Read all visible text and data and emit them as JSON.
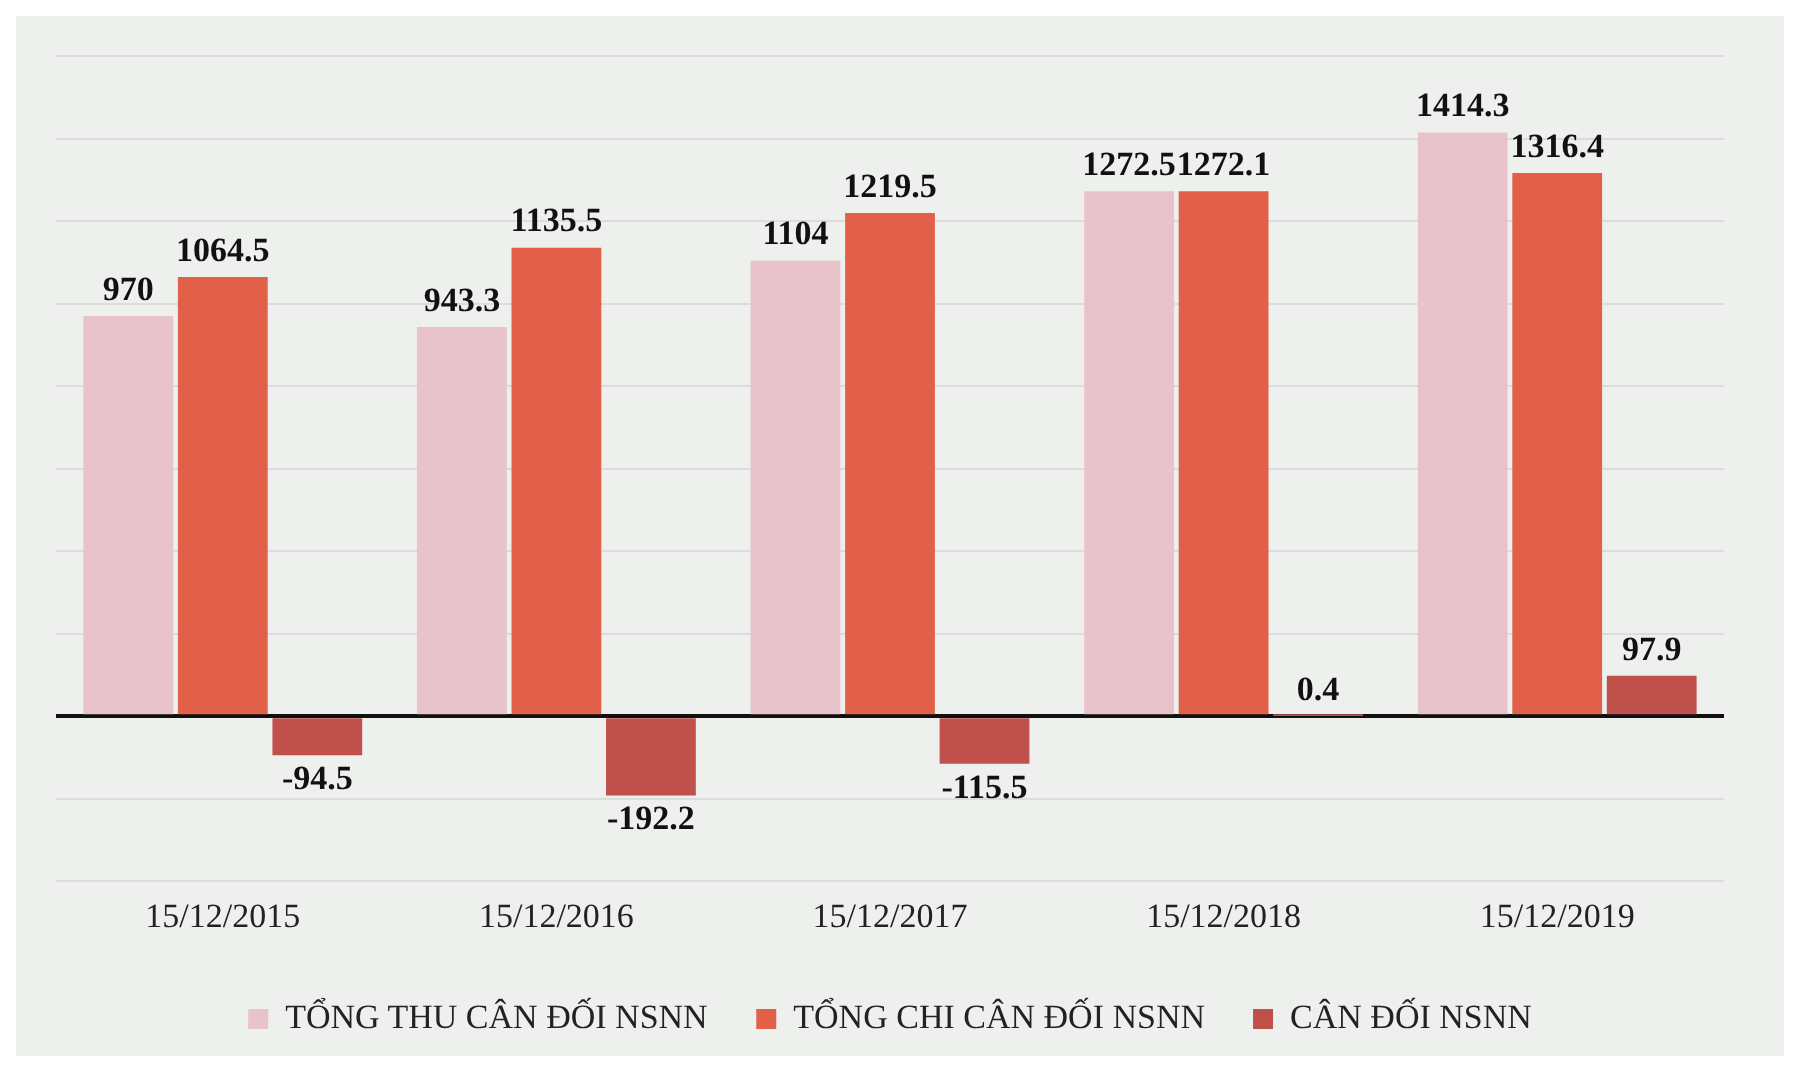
{
  "chart_data": {
    "type": "bar",
    "categories": [
      "15/12/2015",
      "15/12/2016",
      "15/12/2017",
      "15/12/2018",
      "15/12/2019"
    ],
    "series": [
      {
        "name": "TỔNG THU CÂN ĐỐI NSNN",
        "color": "#e8c3cb",
        "values": [
          970,
          943.3,
          1104,
          1272.5,
          1414.3
        ]
      },
      {
        "name": "TỔNG CHI CÂN ĐỐI NSNN",
        "color": "#e2604a",
        "values": [
          1064.5,
          1135.5,
          1219.5,
          1272.1,
          1316.4
        ]
      },
      {
        "name": "CÂN ĐỐI NSNN",
        "color": "#c0504a",
        "values": [
          -94.5,
          -192.2,
          -115.5,
          0.4,
          97.9
        ]
      }
    ],
    "ylim": [
      -400,
      1600
    ],
    "yticks": [
      {
        "value": -400,
        "label": null
      },
      {
        "value": -200,
        "label": null
      },
      {
        "value": 0,
        "label": null
      },
      {
        "value": 200,
        "label": null
      },
      {
        "value": 400,
        "label": null
      },
      {
        "value": 600,
        "label": null
      },
      {
        "value": 800,
        "label": null
      },
      {
        "value": 1000,
        "label": null
      },
      {
        "value": 1200,
        "label": null
      },
      {
        "value": 1400,
        "label": null
      },
      {
        "value": 1600,
        "label": null
      }
    ],
    "tick_labels": "x",
    "grid": "y",
    "legend": "bottom",
    "data_labels": true
  }
}
